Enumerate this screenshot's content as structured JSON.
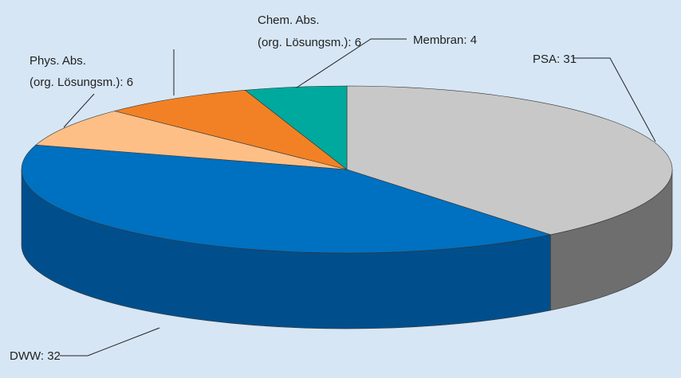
{
  "chart_data": {
    "type": "pie3d",
    "labels": [
      [
        "PSA: 31"
      ],
      [
        "DWW: 32"
      ],
      [
        "Phys. Abs.",
        "(org. Lösungsm.): 6"
      ],
      [
        "Chem. Abs.",
        "(org. Lösungsm.): 6"
      ],
      [
        "Membran: 4"
      ]
    ],
    "values": [
      31,
      32,
      6,
      6,
      4
    ],
    "colors": [
      "#c8c8c8",
      "#0070c0",
      "#fdbf86",
      "#f28125",
      "#00a99d"
    ],
    "side_colors": [
      "#6e6e6e",
      "#004f8c",
      "#c9976a",
      "#b85f18",
      "#007a72"
    ]
  }
}
